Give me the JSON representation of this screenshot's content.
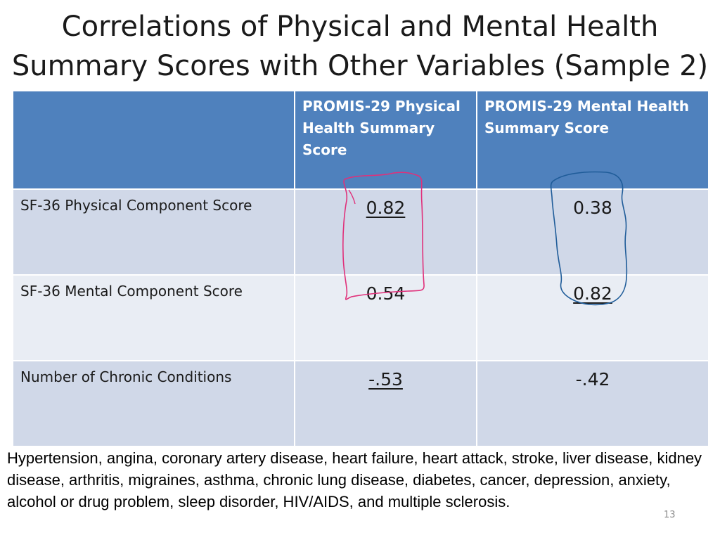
{
  "title": {
    "line1": "Correlations of Physical and Mental Health",
    "line2": "Summary Scores with Other Variables (Sample 2)"
  },
  "table": {
    "header": {
      "blank": "",
      "col1": "PROMIS-29 Physical Health Summary Score",
      "col2": "PROMIS-29 Mental Health Summary Score"
    },
    "rows": [
      {
        "label": "SF-36 Physical Component Score",
        "physical": "0.82",
        "mental": "0.38"
      },
      {
        "label": "SF-36 Mental Component Score",
        "physical": "0.54",
        "mental": "0.82"
      },
      {
        "label": "Number of Chronic Conditions",
        "physical": "-.53",
        "mental": "-.42"
      }
    ]
  },
  "footnote": "Hypertension, angina, coronary artery disease, heart failure, heart attack, stroke, liver disease, kidney disease, arthritis, migraines, asthma, chronic lung disease, diabetes, cancer, depression, anxiety, alcohol or drug problem, sleep disorder, HIV/AIDS, and multiple sclerosis.",
  "page_number": "13",
  "colors": {
    "header_fill": "#4f81bd",
    "row_fill_dark": "#d0d8e8",
    "row_fill_light": "#e9edf4",
    "pink_annotation": "#e0307a",
    "blue_annotation": "#1f5c99"
  }
}
